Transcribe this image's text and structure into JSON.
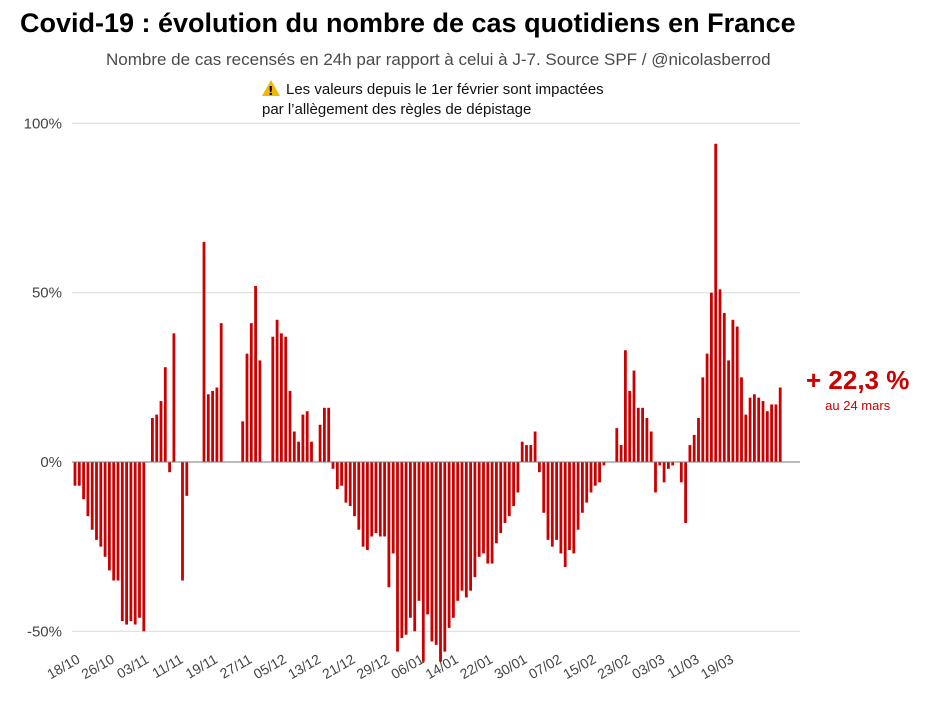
{
  "chart_data": {
    "type": "bar",
    "title": "Covid-19 : évolution du nombre de cas quotidiens en France",
    "subtitle": "Nombre de cas recensés en 24h par rapport à celui à J-7. Source SPF / @nicolasberrod",
    "annotation": {
      "icon": "warning-icon",
      "lines": [
        "Les valeurs depuis le 1er février sont impactées",
        "par l’allègement des règles de dépistage"
      ]
    },
    "unit": "%",
    "ylim": [
      -55,
      100
    ],
    "yticks": [
      100,
      50,
      0,
      -50
    ],
    "ytick_labels": [
      "100%",
      "50%",
      "0%",
      "-50%"
    ],
    "grid": true,
    "bar_color": "#cc0000",
    "start_date": "18/10",
    "xtick_labels": [
      "18/10",
      "26/10",
      "03/11",
      "11/11",
      "19/11",
      "27/11",
      "05/12",
      "13/12",
      "21/12",
      "29/12",
      "06/01",
      "14/01",
      "22/01",
      "30/01",
      "07/02",
      "15/02",
      "23/02",
      "03/03",
      "11/03",
      "19/03"
    ],
    "xtick_step_days": 8,
    "values": [
      -7,
      -7,
      -11,
      -16,
      -20,
      -23,
      -25,
      -28,
      -32,
      -35,
      -35,
      -47,
      -48,
      -47,
      -48,
      -46,
      -50,
      0,
      13,
      14,
      18,
      28,
      -3,
      38,
      0,
      -35,
      -10,
      0,
      0,
      0,
      65,
      20,
      21,
      22,
      41,
      0,
      0,
      0,
      0,
      12,
      32,
      41,
      52,
      30,
      0,
      0,
      37,
      42,
      38,
      37,
      21,
      9,
      6,
      14,
      15,
      6,
      0,
      11,
      16,
      16,
      -2,
      -8,
      -7,
      -12,
      -13,
      -16,
      -20,
      -25,
      -26,
      -22,
      -21,
      -22,
      -22,
      -37,
      -27,
      -56,
      -52,
      -51,
      -46,
      -50,
      -41,
      -59,
      -45,
      -53,
      -54,
      -59,
      -56,
      -49,
      -46,
      -41,
      -38,
      -40,
      -38,
      -34,
      -28,
      -27,
      -30,
      -30,
      -24,
      -21,
      -18,
      -16,
      -13,
      -9,
      6,
      5,
      5,
      9,
      -3,
      -15,
      -23,
      -25,
      -23,
      -27,
      -31,
      -26,
      -27,
      -20,
      -15,
      -12,
      -9,
      -7,
      -6,
      -1,
      0,
      0,
      10,
      5,
      33,
      21,
      27,
      16,
      16,
      13,
      9,
      -9,
      -1,
      -6,
      -2,
      -1,
      0,
      -6,
      -18,
      5,
      8,
      13,
      25,
      32,
      50,
      94,
      51,
      44,
      30,
      42,
      40,
      25,
      14,
      19,
      20,
      19,
      18,
      15,
      17,
      17,
      22
    ],
    "callout": {
      "value": "+ 22,3 %",
      "date": "au 24 mars"
    }
  }
}
